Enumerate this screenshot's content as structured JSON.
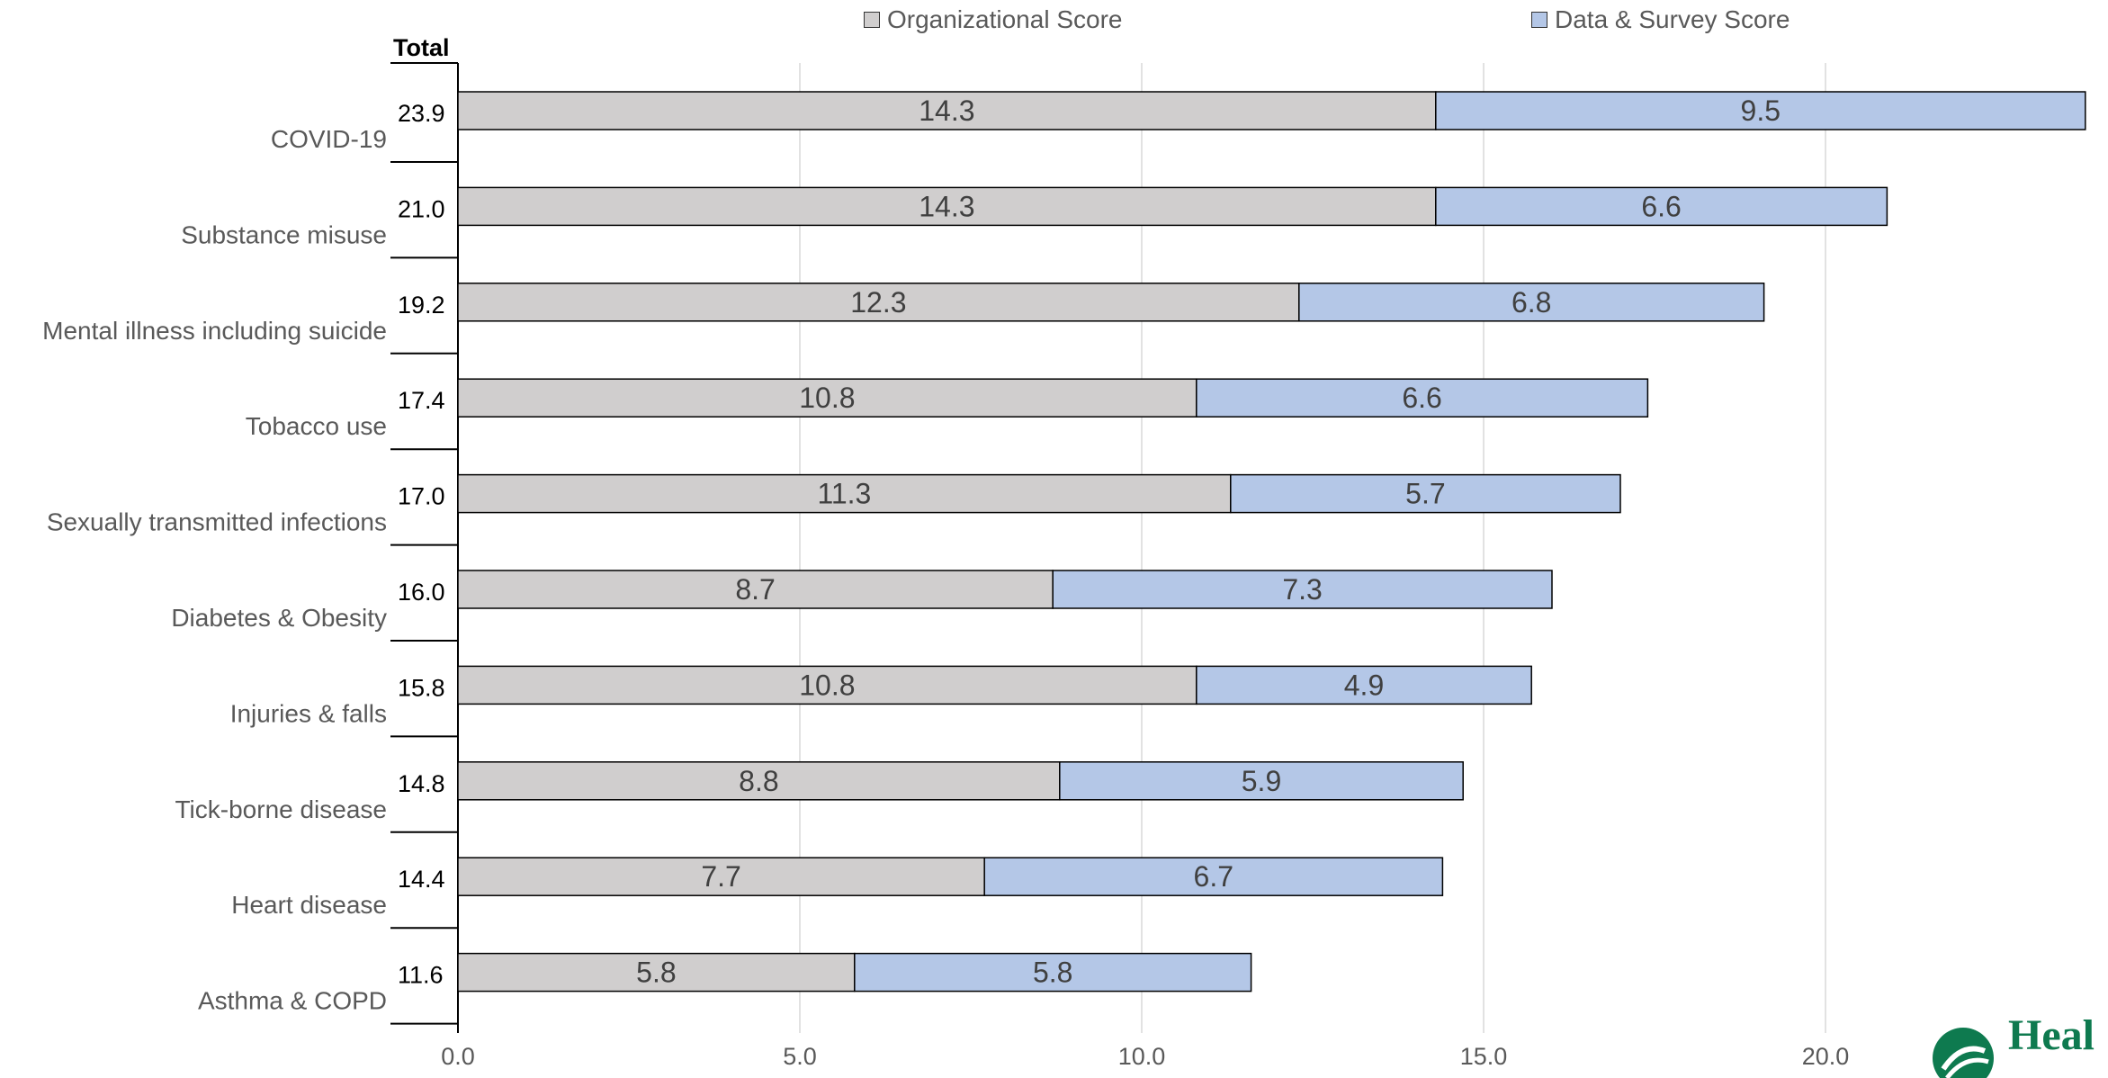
{
  "chart_data": {
    "type": "bar",
    "orientation": "horizontal",
    "stacked": true,
    "categories": [
      "COVID-19",
      "Substance misuse",
      "Mental illness including suicide",
      "Tobacco use",
      "Sexually transmitted infections",
      "Diabetes & Obesity",
      "Injuries & falls",
      "Tick-borne disease",
      "Heart disease",
      "Asthma & COPD"
    ],
    "series": [
      {
        "name": "Organizational Score",
        "color": "#d0cece",
        "values": [
          14.3,
          14.3,
          12.3,
          10.8,
          11.3,
          8.7,
          10.8,
          8.8,
          7.7,
          5.8
        ]
      },
      {
        "name": "Data & Survey Score",
        "color": "#b4c7e7",
        "values": [
          9.5,
          6.6,
          6.8,
          6.6,
          5.7,
          7.3,
          4.9,
          5.9,
          6.7,
          5.8
        ]
      }
    ],
    "totals_header": "Total",
    "totals": [
      "23.9",
      "21.0",
      "19.2",
      "17.4",
      "17.0",
      "16.0",
      "15.8",
      "14.8",
      "14.4",
      "11.6"
    ],
    "xticks": [
      "0.0",
      "5.0",
      "10.0",
      "15.0",
      "20.0"
    ],
    "xlim": [
      0,
      24
    ],
    "grid": true,
    "legend_position": "top"
  },
  "logo": {
    "text": "Heal",
    "color": "#0e7a4f"
  }
}
